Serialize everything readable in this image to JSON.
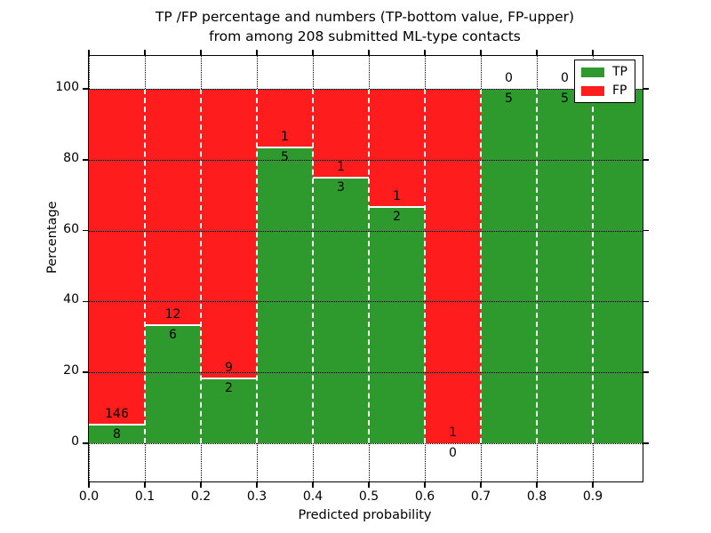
{
  "chart_data": {
    "type": "bar",
    "stacked": true,
    "title_line1": "TP /FP percentage and numbers (TP-bottom value, FP-upper)",
    "title_line2": "from among 208 submitted ML-type contacts",
    "xlabel": "Predicted probability",
    "ylabel": "Percentage",
    "ylim": [
      -10.78,
      109.27
    ],
    "xlim": [
      0,
      0.989
    ],
    "grid": "dotted",
    "legend_position": "upper right",
    "colors": {
      "tp": "#2e9a2e",
      "fp": "#ff1c1c",
      "bar_edge": "#ffffff",
      "grid": "#000000"
    },
    "legend": [
      {
        "label": "TP",
        "color": "#2e9a2e"
      },
      {
        "label": "FP",
        "color": "#ff1c1c"
      }
    ],
    "yticks": [
      {
        "v": 0,
        "label": "0"
      },
      {
        "v": 20,
        "label": "20"
      },
      {
        "v": 40,
        "label": "40"
      },
      {
        "v": 60,
        "label": "60"
      },
      {
        "v": 80,
        "label": "80"
      },
      {
        "v": 100,
        "label": "100"
      }
    ],
    "xticks": [
      {
        "v": 0.0,
        "label": "0.0"
      },
      {
        "v": 0.1,
        "label": "0.1"
      },
      {
        "v": 0.2,
        "label": "0.2"
      },
      {
        "v": 0.3,
        "label": "0.3"
      },
      {
        "v": 0.4,
        "label": "0.4"
      },
      {
        "v": 0.5,
        "label": "0.5"
      },
      {
        "v": 0.6,
        "label": "0.6"
      },
      {
        "v": 0.7,
        "label": "0.7"
      },
      {
        "v": 0.8,
        "label": "0.8"
      },
      {
        "v": 0.9,
        "label": "0.9"
      }
    ],
    "bins": [
      {
        "x0": 0.0,
        "x1": 0.1,
        "tp": 8,
        "fp": 146
      },
      {
        "x0": 0.1,
        "x1": 0.2,
        "tp": 6,
        "fp": 12
      },
      {
        "x0": 0.2,
        "x1": 0.3,
        "tp": 2,
        "fp": 9
      },
      {
        "x0": 0.3,
        "x1": 0.4,
        "tp": 5,
        "fp": 1
      },
      {
        "x0": 0.4,
        "x1": 0.5,
        "tp": 3,
        "fp": 1
      },
      {
        "x0": 0.5,
        "x1": 0.6,
        "tp": 2,
        "fp": 1
      },
      {
        "x0": 0.6,
        "x1": 0.7,
        "tp": 0,
        "fp": 1
      },
      {
        "x0": 0.7,
        "x1": 0.8,
        "tp": 5,
        "fp": 0
      },
      {
        "x0": 0.8,
        "x1": 0.9,
        "tp": 5,
        "fp": 0
      },
      {
        "x0": 0.9,
        "x1": 1.0,
        "tp": 1,
        "fp": 0
      }
    ],
    "total_contacts": 208
  }
}
